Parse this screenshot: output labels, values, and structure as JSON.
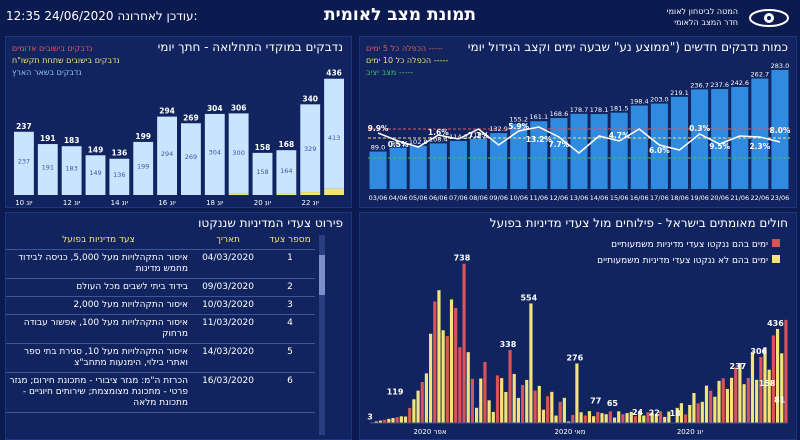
{
  "header": {
    "title": "תמונת מצב לאומית",
    "updated": "12:35 24/06/2020 עודכן לאחרונה:",
    "org_line1": "המטה לביטחון לאומי",
    "org_line2": "חדר המצב הלאומי"
  },
  "panels": {
    "new_cases": {
      "title": "כמות נדבקים חדשים (\"ממוצע נע\" שבעה ימים וקצב הגידול יומי",
      "legend": [
        "הכפלה כל 5 ימים -----",
        "הכפלה כל 10 ימים -----",
        "מצב יציב -----"
      ]
    },
    "sources": {
      "title": "נדבקים במוקדי התחלואה - חתך יומי",
      "legend": [
        "נדבקים בישובים אדומים",
        "נדבקים בישובים שתחת תקשו\"ח",
        "נדבקים בשאר הארץ"
      ]
    },
    "policy": {
      "title": "פירוט צעדי המדיניות שננקטו"
    },
    "patients": {
      "title": "חולים מאומתים בישראל - פילוחים מול צעדי מדיניות בפועל",
      "legend": [
        "ימים בהם ננקטו צעדי מדיניות משמעותיים",
        "ימים בהם לא ננקטו צעדי מדיניות משמעותיים"
      ]
    }
  },
  "policy_table": {
    "headers": [
      "מספר צעד",
      "תאריך",
      "צעד מדיניות בפועל"
    ],
    "rows": [
      {
        "num": "1",
        "date": "04/03/2020",
        "step": "איסור התקהלויות מעל 5,000, כניסה לבידוד מחמש מדינות"
      },
      {
        "num": "2",
        "date": "09/03/2020",
        "step": "בידוד ביתי לשבים מכל העולם"
      },
      {
        "num": "3",
        "date": "10/03/2020",
        "step": "איסור התקהלויות מעל 2,000"
      },
      {
        "num": "4",
        "date": "11/03/2020",
        "step": "איסור התקהלויות מעל 100, אפשור עבודה מרחוק"
      },
      {
        "num": "5",
        "date": "14/03/2020",
        "step": "איסור התקהלויות מעל 10, סגירת בתי ספר ואתרי בילוי, הימנעות מתחב\"צ"
      },
      {
        "num": "6",
        "date": "16/03/2020",
        "step": "הכרזת ה\"מ: מגזר ציבורי - מתכונת חירום; מגזר פרטי - מתכונת מצומצמת; שירותים חיוניים - מתכונת מלאה"
      }
    ]
  },
  "chart_data": [
    {
      "type": "bar",
      "title": "כמות נדבקים חדשים (\"ממוצע נע\" שבעה ימים וקצב הגידול יומי",
      "categories": [
        "03/06",
        "04/06",
        "05/06",
        "06/06",
        "07/06",
        "08/06",
        "09/06",
        "10/06",
        "11/06",
        "12/06",
        "13/06",
        "14/06",
        "15/06",
        "16/06",
        "17/06",
        "18/06",
        "19/06",
        "20/06",
        "21/06",
        "22/06",
        "23/06"
      ],
      "values": [
        89.0,
        98.1,
        102.8,
        108.4,
        114.3,
        119.4,
        132.9,
        155.2,
        161.1,
        168.6,
        178.7,
        178.1,
        181.5,
        198.4,
        203.0,
        219.1,
        236.7,
        237.6,
        242.6,
        262.7,
        283.0
      ],
      "growth_labels": [
        "9.9%",
        "1.6%",
        "7.2%",
        "5.9%",
        "13.2%",
        "4.7%",
        "6.0%",
        "0.3%",
        "9.5%",
        "2.3%",
        "8.0%",
        "0.5%",
        "7.7%"
      ],
      "ylim": [
        0,
        290
      ]
    },
    {
      "type": "bar",
      "title": "נדבקים במוקדי התחלואה - חתך יומי",
      "categories": [
        "יונ 10",
        "",
        "יונ 12",
        "",
        "יונ 14",
        "",
        "יונ 16",
        "",
        "יונ 18",
        "",
        "יונ 20",
        "",
        "יונ 22",
        ""
      ],
      "series": [
        {
          "name": "נדבקים בשאר הארץ",
          "values": [
            237,
            191,
            183,
            149,
            136,
            199,
            294,
            269,
            304,
            300,
            158,
            164,
            329,
            413
          ]
        },
        {
          "name": "נדבקים בישובים שתחת תקשו\"ח",
          "values": [
            0,
            0,
            0,
            0,
            0,
            0,
            0,
            0,
            0,
            6,
            0,
            4,
            11,
            23
          ]
        }
      ],
      "totals": [
        237,
        191,
        183,
        149,
        136,
        199,
        294,
        269,
        304,
        306,
        158,
        168,
        340,
        436
      ],
      "ylim": [
        0,
        450
      ]
    },
    {
      "type": "bar",
      "title": "חולים מאומתים בישראל - פילוחים מול צעדי מדיניות בפועל",
      "x_labels": [
        "אפר 2020",
        "מאי 2020",
        "יונ 2020"
      ],
      "labeled_points": [
        {
          "label": "3",
          "value": 3
        },
        {
          "label": "119",
          "value": 119
        },
        {
          "label": "738",
          "value": 738
        },
        {
          "label": "338",
          "value": 338
        },
        {
          "label": "554",
          "value": 554
        },
        {
          "label": "276",
          "value": 276
        },
        {
          "label": "77",
          "value": 77
        },
        {
          "label": "65",
          "value": 65
        },
        {
          "label": "24",
          "value": 24
        },
        {
          "label": "22",
          "value": 22
        },
        {
          "label": "18",
          "value": 18
        },
        {
          "label": "237",
          "value": 237
        },
        {
          "label": "306",
          "value": 306
        },
        {
          "label": "436",
          "value": 436
        },
        {
          "label": "158",
          "value": 158
        },
        {
          "label": "81",
          "value": 81
        }
      ],
      "ylim": [
        0,
        760
      ]
    }
  ],
  "colors": {
    "bg": "#0b1a4f",
    "panel": "#11245f",
    "bar": "#2e8be0",
    "bar_light": "#c9e4ff",
    "yellow": "#f4e27a",
    "red": "#d9545a",
    "green": "#3fbf5a"
  }
}
